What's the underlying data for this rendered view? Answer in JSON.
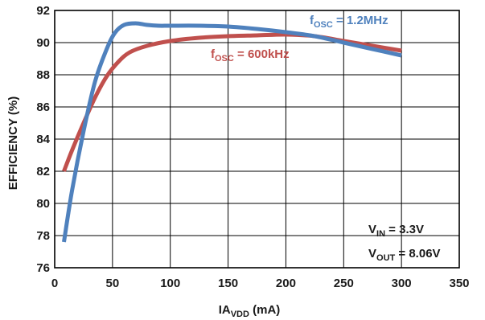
{
  "chart_data": {
    "type": "line",
    "xlabel": {
      "main": "IA",
      "sub": "VDD",
      "tail": " (mA)"
    },
    "ylabel": "EFFICIENCY (%)",
    "xlim": [
      0,
      350
    ],
    "ylim": [
      76,
      92
    ],
    "x_ticks": [
      0,
      50,
      100,
      150,
      200,
      250,
      300,
      350
    ],
    "y_ticks": [
      76,
      78,
      80,
      82,
      84,
      86,
      88,
      90,
      92
    ],
    "x_tick_labels": [
      "0",
      "50",
      "100",
      "150",
      "200",
      "250",
      "300",
      "350"
    ],
    "y_tick_labels": [
      "76",
      "78",
      "80",
      "82",
      "84",
      "86",
      "88",
      "90",
      "92"
    ],
    "grid": true,
    "series": [
      {
        "name": "fOSC = 600kHz",
        "label": {
          "main": "f",
          "sub": "OSC",
          "tail": " = 600kHz"
        },
        "color": "#c0504d",
        "x": [
          8,
          15,
          25,
          35,
          45,
          55,
          65,
          80,
          100,
          125,
          150,
          175,
          200,
          225,
          250,
          275,
          300
        ],
        "y": [
          82.0,
          83.3,
          85.0,
          86.6,
          87.9,
          88.8,
          89.4,
          89.8,
          90.1,
          90.3,
          90.4,
          90.45,
          90.5,
          90.4,
          90.1,
          89.8,
          89.5
        ]
      },
      {
        "name": "fOSC = 1.2MHz",
        "label": {
          "main": "f",
          "sub": "OSC",
          "tail": " = 1.2MHz"
        },
        "color": "#4f81bd",
        "x": [
          8,
          15,
          25,
          35,
          45,
          52,
          60,
          70,
          80,
          90,
          100,
          125,
          150,
          175,
          200,
          225,
          250,
          275,
          300
        ],
        "y": [
          77.6,
          80.8,
          84.5,
          87.6,
          89.6,
          90.6,
          91.1,
          91.2,
          91.1,
          91.05,
          91.05,
          91.05,
          91.0,
          90.85,
          90.65,
          90.4,
          90.0,
          89.6,
          89.2
        ]
      }
    ],
    "annotation": {
      "line1": {
        "main": "V",
        "sub": "IN",
        "tail": " = 3.3V"
      },
      "line2": {
        "main": "V",
        "sub": "OUT",
        "tail": " = 8.06V"
      }
    }
  }
}
